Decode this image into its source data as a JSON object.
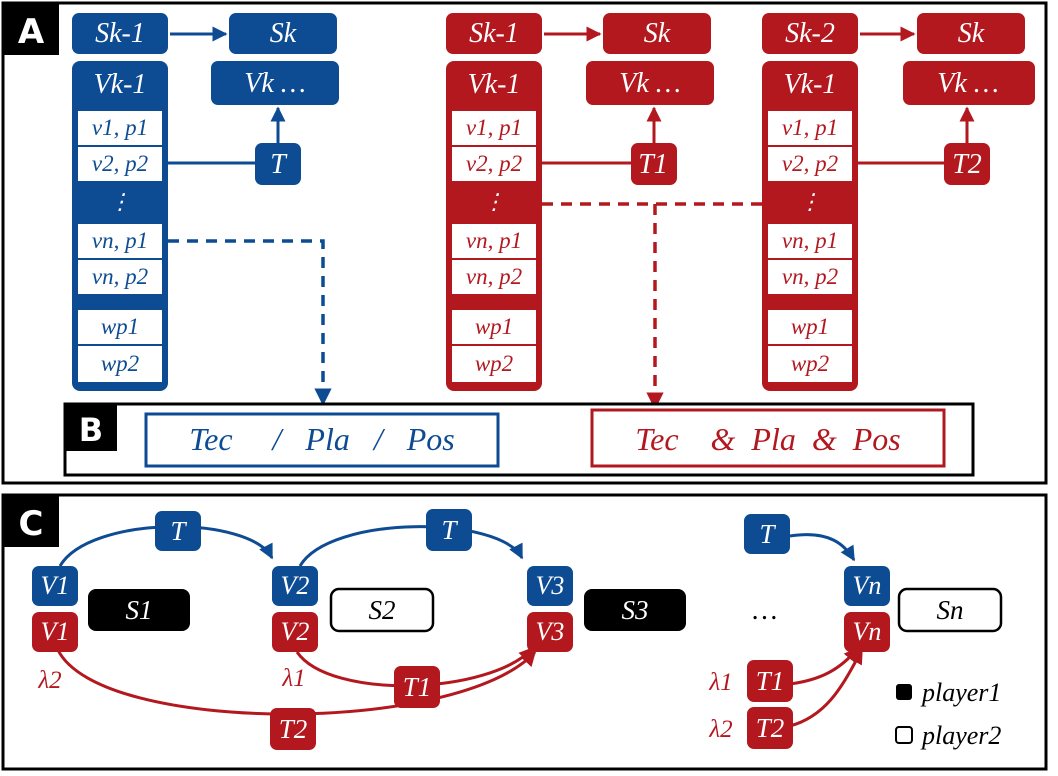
{
  "colors": {
    "blue": "#0d4b93",
    "red": "#b3181f",
    "black": "#000000",
    "white": "#ffffff"
  },
  "section_labels": {
    "a": "A",
    "b": "B",
    "c": "C"
  },
  "panel_a": {
    "blue": {
      "state_prev": "Sk-1",
      "state_next": "Sk",
      "vector_prev": "Vk-1",
      "vector_next": "Vk  …",
      "rows": [
        "v1, p1",
        "v2, p2",
        "⋮",
        "vn, p1",
        "vn, p2",
        "wp1",
        "wp2"
      ],
      "transition": "T"
    },
    "red_1": {
      "state_prev": "Sk-1",
      "state_next": "Sk",
      "vector_prev": "Vk-1",
      "vector_next": "Vk  …",
      "rows": [
        "v1, p1",
        "v2, p2",
        "⋮",
        "vn, p1",
        "vn, p2",
        "wp1",
        "wp2"
      ],
      "transition": "T1"
    },
    "red_2": {
      "state_prev": "Sk-2",
      "state_next": "Sk",
      "vector_prev": "Vk-1",
      "vector_next": "Vk  …",
      "rows": [
        "v1, p1",
        "v2, p2",
        "⋮",
        "vn, p1",
        "vn, p2",
        "wp1",
        "wp2"
      ],
      "transition": "T2"
    }
  },
  "panel_b": {
    "blue_box": "Tec     /   Pla   /   Pos",
    "red_box": "Tec    &  Pla  &  Pos"
  },
  "panel_c": {
    "blue_transitions": [
      "T",
      "T",
      "T"
    ],
    "blue_vectors": [
      "V1",
      "V2",
      "V3",
      "Vn"
    ],
    "red_vectors": [
      "V1",
      "V2",
      "V3",
      "Vn"
    ],
    "states": [
      "S1",
      "S2",
      "S3",
      "Sn"
    ],
    "red_transitions": [
      "T1",
      "T2",
      "T1",
      "T2"
    ],
    "lambdas": [
      "λ2",
      "λ1",
      "λ1",
      "λ2"
    ],
    "ellipsis": "…",
    "legend": {
      "player1": "player1",
      "player2": "player2"
    }
  }
}
